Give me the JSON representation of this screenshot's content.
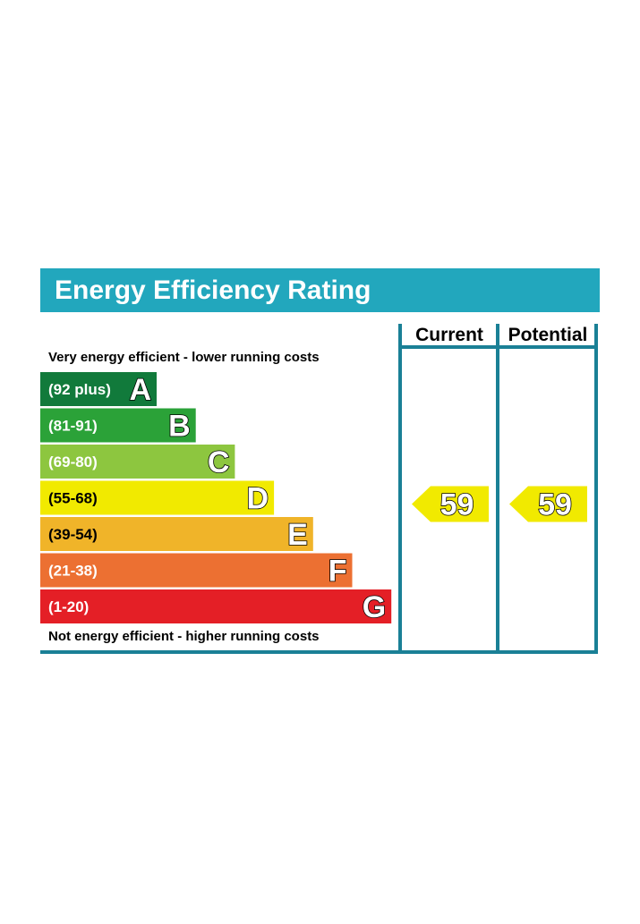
{
  "title": "Energy Efficiency Rating",
  "columns": {
    "current": "Current",
    "potential": "Potential"
  },
  "top_note": "Very energy efficient - lower running costs",
  "bottom_note": "Not energy efficient - higher running costs",
  "chart_data": {
    "type": "bar",
    "categories": [
      "A",
      "B",
      "C",
      "D",
      "E",
      "F",
      "G"
    ],
    "bands": [
      {
        "letter": "A",
        "range": "(92 plus)",
        "color": "#117a3b"
      },
      {
        "letter": "B",
        "range": "(81-91)",
        "color": "#2ba238"
      },
      {
        "letter": "C",
        "range": "(69-80)",
        "color": "#8dc63f"
      },
      {
        "letter": "D",
        "range": "(55-68)",
        "color": "#f1ea00"
      },
      {
        "letter": "E",
        "range": "(39-54)",
        "color": "#f0b429"
      },
      {
        "letter": "F",
        "range": "(21-38)",
        "color": "#ec7032"
      },
      {
        "letter": "G",
        "range": "(1-20)",
        "color": "#e41f26"
      }
    ],
    "current": {
      "value": 59,
      "band": "D",
      "color": "#f1ea00"
    },
    "potential": {
      "value": 59,
      "band": "D",
      "color": "#f1ea00"
    },
    "frame_color": "#1a8096",
    "header_color": "#22a7bd"
  }
}
